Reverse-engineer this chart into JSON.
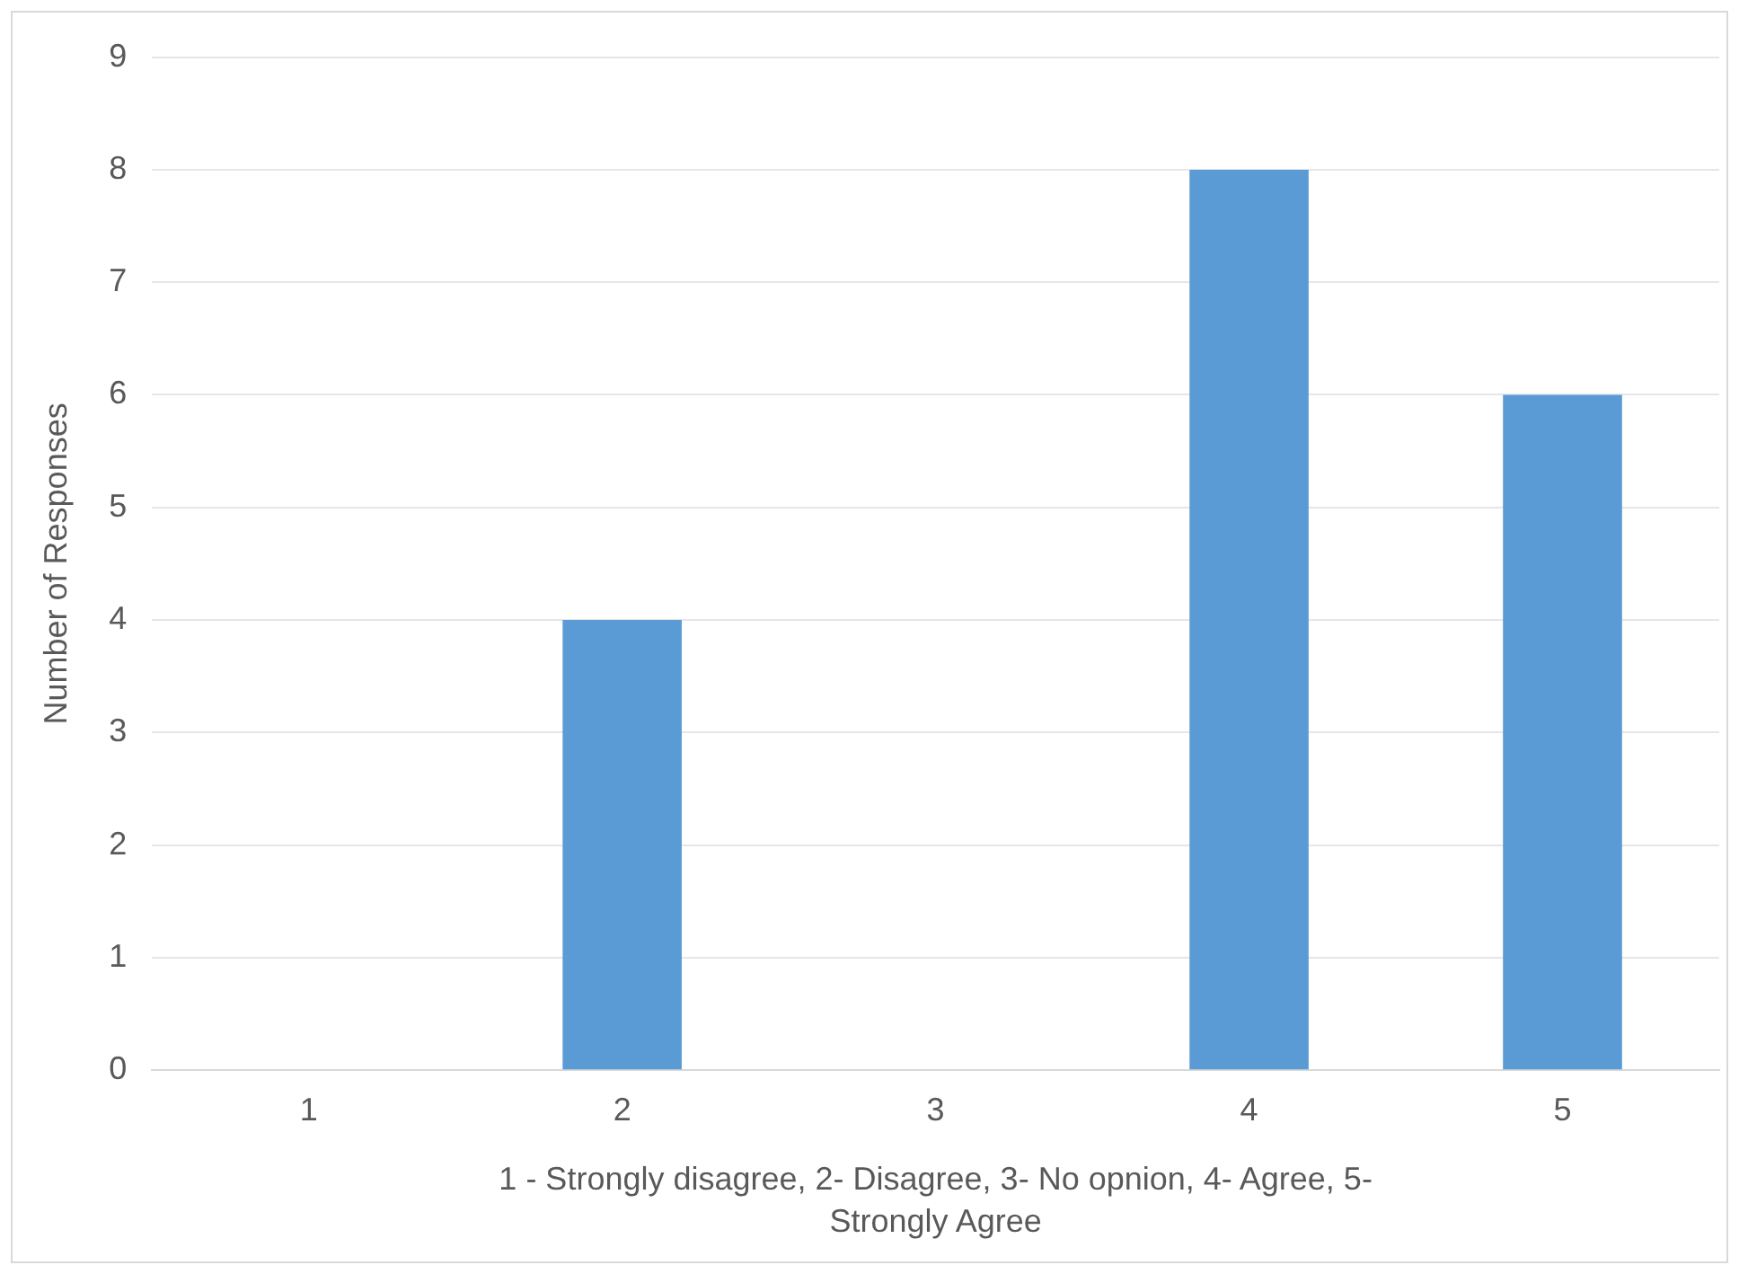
{
  "chart_data": {
    "type": "bar",
    "xlabel": "1 - Strongly disagree, 2- Disagree, 3- No opnion, 4- Agree, 5- Strongly Agree",
    "ylabel": "Number of Responses",
    "categories": [
      "1",
      "2",
      "3",
      "4",
      "5"
    ],
    "values": [
      0,
      4,
      0,
      8,
      6
    ],
    "color": "#5b9bd5",
    "ylim": [
      0,
      9
    ],
    "yticks": [
      0,
      1,
      2,
      3,
      4,
      5,
      6,
      7,
      8,
      9
    ],
    "grid": "y"
  }
}
